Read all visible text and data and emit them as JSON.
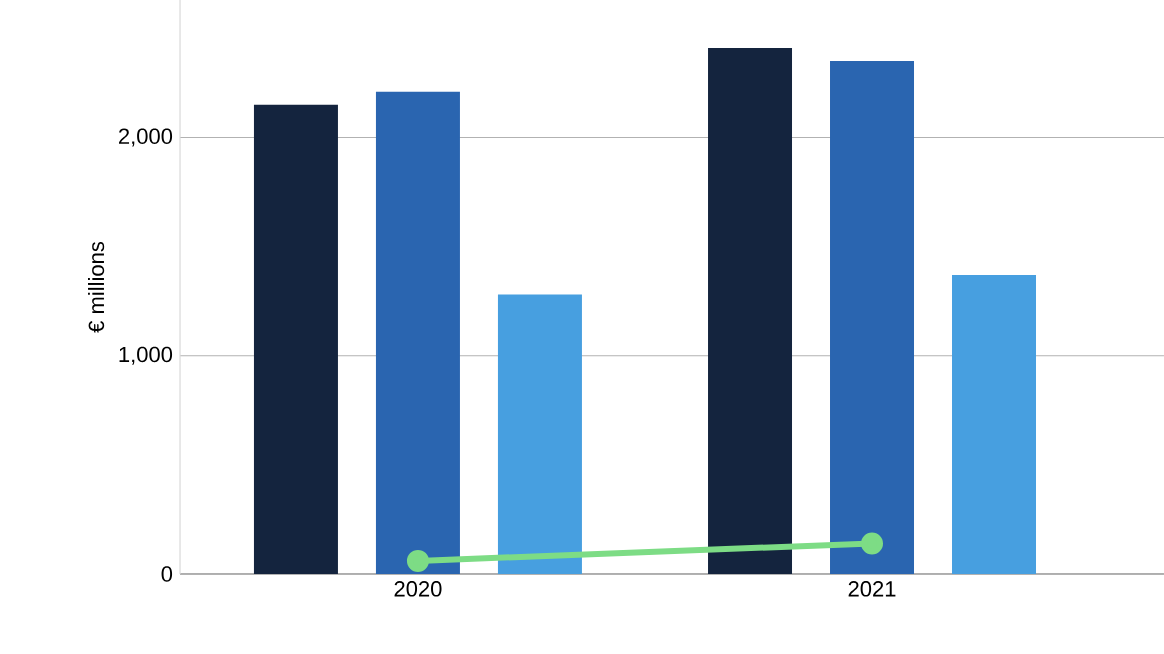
{
  "chart_data": {
    "type": "bar",
    "ylabel": "€ millions",
    "categories": [
      "2020",
      "2021"
    ],
    "series": [
      {
        "color": "#14243e",
        "values": [
          2150,
          2410
        ]
      },
      {
        "color": "#2a65b0",
        "values": [
          2210,
          2350
        ]
      },
      {
        "color": "#479fe0",
        "values": [
          1280,
          1370
        ]
      },
      {
        "type": "line",
        "color": "#7ddc85",
        "values": [
          60,
          140
        ],
        "marker": "circle"
      }
    ],
    "yticks": [
      {
        "value": 0,
        "label": "0"
      },
      {
        "value": 1000,
        "label": "1,000"
      },
      {
        "value": 2000,
        "label": "2,000"
      }
    ],
    "ylim": [
      0,
      2630
    ],
    "grid": "y"
  }
}
